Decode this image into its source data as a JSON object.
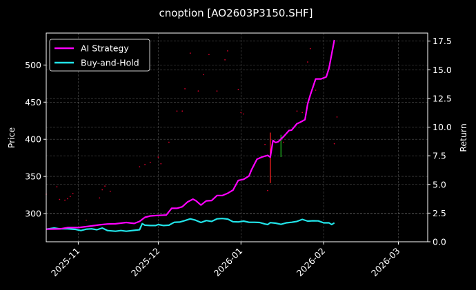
{
  "chart_data": {
    "type": "line",
    "title": "cnoption [AO2603P3150.SHF]",
    "ylabel_left": "Price",
    "ylabel_right": "Return",
    "y_left": {
      "lim": [
        262,
        543
      ],
      "ticks": [
        300,
        350,
        400,
        450,
        500
      ]
    },
    "y_right": {
      "lim": [
        0,
        18.2
      ],
      "ticks": [
        0.0,
        2.5,
        5.0,
        7.5,
        10.0,
        12.5,
        15.0,
        17.5
      ],
      "tick_labels": [
        "0.0",
        "2.5",
        "5.0",
        "7.5",
        "10.0",
        "12.5",
        "15.0",
        "17.5"
      ]
    },
    "x": {
      "start": "2025-10-20",
      "end": "2026-03-12",
      "ticks": [
        "2025-11-01",
        "2025-12-01",
        "2026-01-01",
        "2026-02-01",
        "2026-03-01"
      ],
      "tick_labels": [
        "2025-11",
        "2025-12",
        "2026-01",
        "2026-02",
        "2026-03"
      ]
    },
    "grid": true,
    "legend": "top-left",
    "colors": {
      "ai": "#ff00ff",
      "bh": "#22e5ea",
      "price": "#d4002a",
      "bar_red": "#ff2020",
      "bar_green": "#22bb22"
    },
    "series": [
      {
        "name": "AI Strategy",
        "axis": "right",
        "color": "#ff00ff",
        "points": [
          [
            "2025-10-20",
            1.1
          ],
          [
            "2025-10-25",
            1.12
          ],
          [
            "2025-10-28",
            1.24
          ],
          [
            "2025-11-01",
            1.24
          ],
          [
            "2025-11-05",
            1.35
          ],
          [
            "2025-11-09",
            1.48
          ],
          [
            "2025-11-12",
            1.55
          ],
          [
            "2025-11-15",
            1.57
          ],
          [
            "2025-11-19",
            1.68
          ],
          [
            "2025-11-22",
            1.6
          ],
          [
            "2025-11-24",
            1.78
          ],
          [
            "2025-11-26",
            2.13
          ],
          [
            "2025-11-28",
            2.25
          ],
          [
            "2025-12-01",
            2.3
          ],
          [
            "2025-12-04",
            2.33
          ],
          [
            "2025-12-06",
            2.92
          ],
          [
            "2025-12-08",
            2.92
          ],
          [
            "2025-12-10",
            3.05
          ],
          [
            "2025-12-12",
            3.48
          ],
          [
            "2025-12-14",
            3.72
          ],
          [
            "2025-12-15",
            3.6
          ],
          [
            "2025-12-17",
            3.2
          ],
          [
            "2025-12-19",
            3.57
          ],
          [
            "2025-12-21",
            3.6
          ],
          [
            "2025-12-23",
            4.03
          ],
          [
            "2025-12-25",
            4.03
          ],
          [
            "2025-12-27",
            4.23
          ],
          [
            "2025-12-29",
            4.5
          ],
          [
            "2025-12-31",
            5.35
          ],
          [
            "2026-01-02",
            5.45
          ],
          [
            "2026-01-04",
            5.73
          ],
          [
            "2026-01-05",
            6.3
          ],
          [
            "2026-01-07",
            7.2
          ],
          [
            "2026-01-09",
            7.4
          ],
          [
            "2026-01-11",
            7.53
          ],
          [
            "2026-01-12",
            7.38
          ],
          [
            "2026-01-13",
            8.83
          ],
          [
            "2026-01-14",
            8.65
          ],
          [
            "2026-01-15",
            8.73
          ],
          [
            "2026-01-17",
            9.18
          ],
          [
            "2026-01-19",
            9.7
          ],
          [
            "2026-01-20",
            9.74
          ],
          [
            "2026-01-22",
            10.3
          ],
          [
            "2026-01-23",
            10.4
          ],
          [
            "2026-01-25",
            10.65
          ],
          [
            "2026-01-26",
            12.03
          ],
          [
            "2026-01-27",
            12.8
          ],
          [
            "2026-01-29",
            14.2
          ],
          [
            "2026-01-31",
            14.2
          ],
          [
            "2026-02-02",
            14.38
          ],
          [
            "2026-02-03",
            15.13
          ],
          [
            "2026-02-05",
            17.6
          ]
        ]
      },
      {
        "name": "Buy-and-Hold",
        "axis": "right",
        "color": "#22e5ea",
        "points": [
          [
            "2025-10-20",
            1.1
          ],
          [
            "2025-10-23",
            1.2
          ],
          [
            "2025-10-25",
            1.13
          ],
          [
            "2025-10-28",
            1.13
          ],
          [
            "2025-10-31",
            1.08
          ],
          [
            "2025-11-02",
            0.98
          ],
          [
            "2025-11-04",
            1.1
          ],
          [
            "2025-11-06",
            1.13
          ],
          [
            "2025-11-08",
            1.05
          ],
          [
            "2025-11-10",
            1.2
          ],
          [
            "2025-11-12",
            0.98
          ],
          [
            "2025-11-15",
            0.92
          ],
          [
            "2025-11-17",
            0.98
          ],
          [
            "2025-11-19",
            0.92
          ],
          [
            "2025-11-22",
            1.0
          ],
          [
            "2025-11-24",
            1.05
          ],
          [
            "2025-11-25",
            1.58
          ],
          [
            "2025-11-26",
            1.45
          ],
          [
            "2025-11-28",
            1.42
          ],
          [
            "2025-11-30",
            1.42
          ],
          [
            "2025-12-01",
            1.5
          ],
          [
            "2025-12-03",
            1.42
          ],
          [
            "2025-12-05",
            1.45
          ],
          [
            "2025-12-07",
            1.7
          ],
          [
            "2025-12-09",
            1.72
          ],
          [
            "2025-12-11",
            1.85
          ],
          [
            "2025-12-13",
            2.0
          ],
          [
            "2025-12-15",
            1.88
          ],
          [
            "2025-12-17",
            1.68
          ],
          [
            "2025-12-19",
            1.85
          ],
          [
            "2025-12-21",
            1.78
          ],
          [
            "2025-12-23",
            2.0
          ],
          [
            "2025-12-25",
            2.03
          ],
          [
            "2025-12-27",
            1.98
          ],
          [
            "2025-12-29",
            1.75
          ],
          [
            "2025-12-31",
            1.73
          ],
          [
            "2026-01-02",
            1.8
          ],
          [
            "2026-01-04",
            1.7
          ],
          [
            "2026-01-06",
            1.7
          ],
          [
            "2026-01-08",
            1.68
          ],
          [
            "2026-01-10",
            1.55
          ],
          [
            "2026-01-11",
            1.5
          ],
          [
            "2026-01-12",
            1.67
          ],
          [
            "2026-01-14",
            1.62
          ],
          [
            "2026-01-16",
            1.52
          ],
          [
            "2026-01-18",
            1.65
          ],
          [
            "2026-01-20",
            1.7
          ],
          [
            "2026-01-22",
            1.78
          ],
          [
            "2026-01-24",
            1.95
          ],
          [
            "2026-01-26",
            1.8
          ],
          [
            "2026-01-28",
            1.83
          ],
          [
            "2026-01-30",
            1.82
          ],
          [
            "2026-02-01",
            1.65
          ],
          [
            "2026-02-03",
            1.65
          ],
          [
            "2026-02-04",
            1.5
          ],
          [
            "2026-02-05",
            1.65
          ]
        ]
      }
    ],
    "price_points": [
      [
        "2025-10-20",
        326
      ],
      [
        "2025-10-24",
        336
      ],
      [
        "2025-10-25",
        319
      ],
      [
        "2025-10-27",
        318
      ],
      [
        "2025-10-28",
        320
      ],
      [
        "2025-10-29",
        323
      ],
      [
        "2025-10-30",
        327
      ],
      [
        "2025-11-04",
        291
      ],
      [
        "2025-11-09",
        321
      ],
      [
        "2025-11-10",
        332
      ],
      [
        "2025-11-11",
        337
      ],
      [
        "2025-11-13",
        330
      ],
      [
        "2025-11-24",
        363
      ],
      [
        "2025-11-26",
        366
      ],
      [
        "2025-11-28",
        369
      ],
      [
        "2025-12-01",
        376
      ],
      [
        "2025-12-02",
        367
      ],
      [
        "2025-12-05",
        396
      ],
      [
        "2025-12-08",
        438
      ],
      [
        "2025-12-10",
        438
      ],
      [
        "2025-12-11",
        468
      ],
      [
        "2025-12-13",
        516
      ],
      [
        "2025-12-16",
        465
      ],
      [
        "2025-12-18",
        487
      ],
      [
        "2025-12-20",
        514
      ],
      [
        "2025-12-23",
        465
      ],
      [
        "2025-12-26",
        507
      ],
      [
        "2025-12-27",
        519
      ],
      [
        "2025-12-31",
        467
      ],
      [
        "2026-01-01",
        436
      ],
      [
        "2026-01-02",
        434
      ],
      [
        "2026-01-10",
        393
      ],
      [
        "2026-01-11",
        331
      ],
      [
        "2026-01-17",
        396
      ],
      [
        "2026-01-22",
        438
      ],
      [
        "2026-01-24",
        436
      ],
      [
        "2026-01-26",
        504
      ],
      [
        "2026-01-27",
        522
      ],
      [
        "2026-01-29",
        466
      ],
      [
        "2026-02-05",
        394
      ],
      [
        "2026-02-06",
        430
      ]
    ],
    "price_bars": [
      {
        "date": "2026-01-12",
        "low": 341,
        "high": 409,
        "color": "#ff2020"
      },
      {
        "date": "2026-01-16",
        "low": 376,
        "high": 406,
        "color": "#22bb22"
      }
    ]
  }
}
